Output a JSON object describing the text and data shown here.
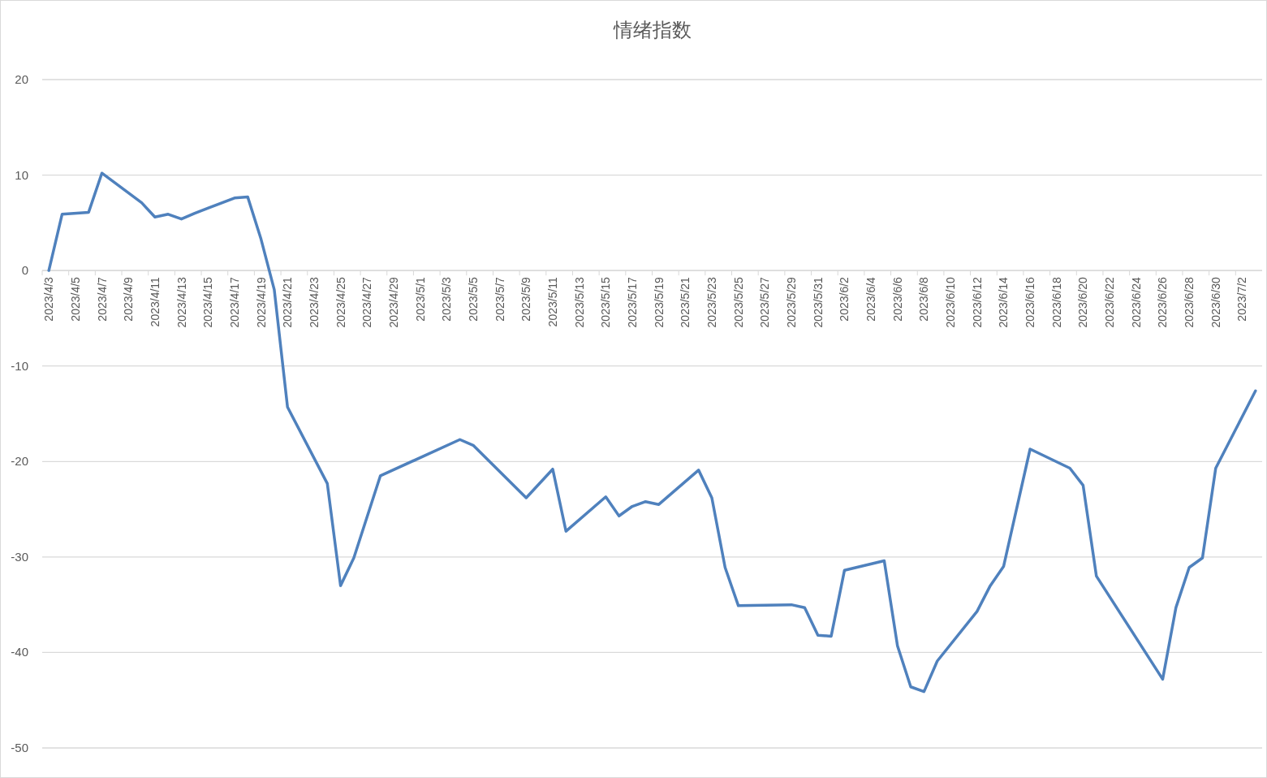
{
  "chart_data": {
    "type": "line",
    "title": "情绪指数",
    "color": "#4f81bd",
    "grid": "y",
    "line_style": "solid",
    "xlim": [
      "2023-04-02T12:00",
      "2023-07-03T12:00"
    ],
    "ylim": [
      -50,
      20
    ],
    "yticks": [
      -50,
      -40,
      -30,
      -20,
      -10,
      0,
      10,
      20
    ],
    "xticks": [
      {
        "value": "2023-04-03",
        "label": "2023/4/3"
      },
      {
        "value": "2023-04-05",
        "label": "2023/4/5"
      },
      {
        "value": "2023-04-07",
        "label": "2023/4/7"
      },
      {
        "value": "2023-04-09",
        "label": "2023/4/9"
      },
      {
        "value": "2023-04-11",
        "label": "2023/4/11"
      },
      {
        "value": "2023-04-13",
        "label": "2023/4/13"
      },
      {
        "value": "2023-04-15",
        "label": "2023/4/15"
      },
      {
        "value": "2023-04-17",
        "label": "2023/4/17"
      },
      {
        "value": "2023-04-19",
        "label": "2023/4/19"
      },
      {
        "value": "2023-04-21",
        "label": "2023/4/21"
      },
      {
        "value": "2023-04-23",
        "label": "2023/4/23"
      },
      {
        "value": "2023-04-25",
        "label": "2023/4/25"
      },
      {
        "value": "2023-04-27",
        "label": "2023/4/27"
      },
      {
        "value": "2023-04-29",
        "label": "2023/4/29"
      },
      {
        "value": "2023-05-01",
        "label": "2023/5/1"
      },
      {
        "value": "2023-05-03",
        "label": "2023/5/3"
      },
      {
        "value": "2023-05-05",
        "label": "2023/5/5"
      },
      {
        "value": "2023-05-07",
        "label": "2023/5/7"
      },
      {
        "value": "2023-05-09",
        "label": "2023/5/9"
      },
      {
        "value": "2023-05-11",
        "label": "2023/5/11"
      },
      {
        "value": "2023-05-13",
        "label": "2023/5/13"
      },
      {
        "value": "2023-05-15",
        "label": "2023/5/15"
      },
      {
        "value": "2023-05-17",
        "label": "2023/5/17"
      },
      {
        "value": "2023-05-19",
        "label": "2023/5/19"
      },
      {
        "value": "2023-05-21",
        "label": "2023/5/21"
      },
      {
        "value": "2023-05-23",
        "label": "2023/5/23"
      },
      {
        "value": "2023-05-25",
        "label": "2023/5/25"
      },
      {
        "value": "2023-05-27",
        "label": "2023/5/27"
      },
      {
        "value": "2023-05-29",
        "label": "2023/5/29"
      },
      {
        "value": "2023-05-31",
        "label": "2023/5/31"
      },
      {
        "value": "2023-06-02",
        "label": "2023/6/2"
      },
      {
        "value": "2023-06-04",
        "label": "2023/6/4"
      },
      {
        "value": "2023-06-06",
        "label": "2023/6/6"
      },
      {
        "value": "2023-06-08",
        "label": "2023/6/8"
      },
      {
        "value": "2023-06-10",
        "label": "2023/6/10"
      },
      {
        "value": "2023-06-12",
        "label": "2023/6/12"
      },
      {
        "value": "2023-06-14",
        "label": "2023/6/14"
      },
      {
        "value": "2023-06-16",
        "label": "2023/6/16"
      },
      {
        "value": "2023-06-18",
        "label": "2023/6/18"
      },
      {
        "value": "2023-06-20",
        "label": "2023/6/20"
      },
      {
        "value": "2023-06-22",
        "label": "2023/6/22"
      },
      {
        "value": "2023-06-24",
        "label": "2023/6/24"
      },
      {
        "value": "2023-06-26",
        "label": "2023/6/26"
      },
      {
        "value": "2023-06-28",
        "label": "2023/6/28"
      },
      {
        "value": "2023-06-30",
        "label": "2023/6/30"
      },
      {
        "value": "2023-07-02",
        "label": "2023/7/2"
      }
    ],
    "x": [
      "2023-04-03",
      "2023-04-04",
      "2023-04-06",
      "2023-04-07",
      "2023-04-10",
      "2023-04-11",
      "2023-04-12",
      "2023-04-13",
      "2023-04-14",
      "2023-04-17",
      "2023-04-18",
      "2023-04-19",
      "2023-04-20",
      "2023-04-21",
      "2023-04-24",
      "2023-04-25",
      "2023-04-26",
      "2023-04-28",
      "2023-05-04",
      "2023-05-05",
      "2023-05-09",
      "2023-05-11",
      "2023-05-12",
      "2023-05-15",
      "2023-05-16",
      "2023-05-17",
      "2023-05-18",
      "2023-05-19",
      "2023-05-22",
      "2023-05-23",
      "2023-05-24",
      "2023-05-25",
      "2023-05-29",
      "2023-05-30",
      "2023-05-31",
      "2023-06-01",
      "2023-06-02",
      "2023-06-05",
      "2023-06-06",
      "2023-06-07",
      "2023-06-08",
      "2023-06-09",
      "2023-06-12",
      "2023-06-13",
      "2023-06-14",
      "2023-06-16",
      "2023-06-19",
      "2023-06-20",
      "2023-06-21",
      "2023-06-26",
      "2023-06-27",
      "2023-06-28",
      "2023-06-29",
      "2023-06-30",
      "2023-07-03"
    ],
    "values": [
      0,
      5.9,
      6.1,
      10.2,
      7.1,
      5.6,
      5.9,
      5.4,
      6.0,
      7.6,
      7.7,
      3.3,
      -2.0,
      -14.3,
      -22.3,
      -33.0,
      -30.1,
      -21.5,
      -17.7,
      -18.3,
      -23.8,
      -20.8,
      -27.3,
      -23.7,
      -25.7,
      -24.7,
      -24.2,
      -24.5,
      -20.9,
      -23.8,
      -31.1,
      -35.1,
      -35.0,
      -35.3,
      -38.2,
      -38.3,
      -31.4,
      -30.4,
      -39.3,
      -43.6,
      -44.1,
      -40.9,
      -35.7,
      -33.0,
      -31.0,
      -18.7,
      -20.7,
      -22.5,
      -32.0,
      -42.8,
      -35.3,
      -31.1,
      -30.1,
      -20.7,
      -12.6
    ]
  }
}
